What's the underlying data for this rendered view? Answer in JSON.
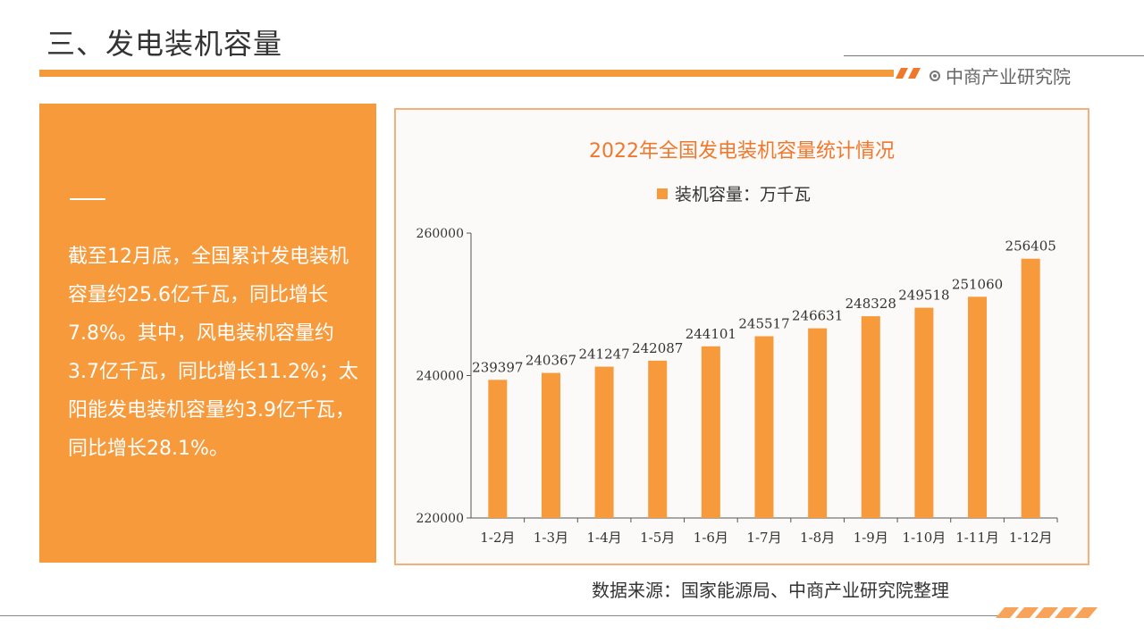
{
  "header": {
    "title": "三、发电装机容量",
    "brand": "中商产业研究院"
  },
  "left_panel": {
    "text": "截至12月底，全国累计发电装机容量约25.6亿千瓦，同比增长7.8%。其中，风电装机容量约3.7亿千瓦，同比增长11.2%；太阳能发电装机容量约3.9亿千瓦，同比增长28.1%。"
  },
  "footer": {
    "source": "数据来源：国家能源局、中商产业研究院整理"
  },
  "colors": {
    "accent": "#f79a3c",
    "title_orange": "#f0782d"
  },
  "chart_data": {
    "type": "bar",
    "title": "2022年全国发电装机容量统计情况",
    "legend": "装机容量：万千瓦",
    "legend_position": "top",
    "categories": [
      "1-2月",
      "1-3月",
      "1-4月",
      "1-5月",
      "1-6月",
      "1-7月",
      "1-8月",
      "1-9月",
      "1-10月",
      "1-11月",
      "1-12月"
    ],
    "values": [
      239397,
      240367,
      241247,
      242087,
      244101,
      245517,
      246631,
      248328,
      249518,
      251060,
      256405
    ],
    "ylim": [
      220000,
      260000
    ],
    "yticks": [
      220000,
      240000,
      260000
    ],
    "grid": false,
    "xlabel": "",
    "ylabel": ""
  }
}
